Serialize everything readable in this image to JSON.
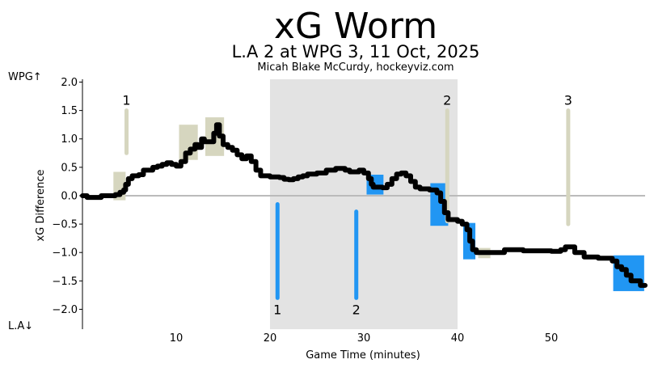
{
  "chart_data": {
    "type": "line",
    "title": "xG Worm",
    "subtitle": "L.A 2 at WPG 3, 11 Oct, 2025",
    "credit": "Micah Blake McCurdy, hockeyviz.com",
    "xlabel": "Game Time (minutes)",
    "ylabel": "xG Difference",
    "top_team_label": "WPG↑",
    "bottom_team_label": "L.A↓",
    "xlim": [
      0,
      60
    ],
    "ylim": [
      -2.35,
      2.05
    ],
    "x_ticks": [
      10,
      20,
      30,
      40,
      50
    ],
    "y_ticks": [
      2.0,
      1.5,
      1.0,
      0.5,
      0.0,
      -0.5,
      -1.0,
      -1.5,
      -2.0
    ],
    "x_tick_labels": [
      "10",
      "20",
      "30",
      "40",
      "50"
    ],
    "y_tick_labels": [
      "2.0",
      "1.5",
      "1.0",
      "0.5",
      "0.0",
      "−0.5",
      "−1.0",
      "−1.5",
      "−2.0"
    ],
    "shaded_period": [
      20,
      40
    ],
    "colors": {
      "worm": "#000000",
      "top_team": "#d6d6bf",
      "bottom_team": "#2196f3",
      "period_shade": "#e3e3e3",
      "zero_line": "#bbbbbb"
    },
    "worm": [
      [
        0,
        0.0
      ],
      [
        0.5,
        -0.03
      ],
      [
        1.5,
        -0.03
      ],
      [
        2,
        0.0
      ],
      [
        3,
        0.0
      ],
      [
        3.5,
        0.02
      ],
      [
        4,
        0.06
      ],
      [
        4.4,
        0.1
      ],
      [
        4.6,
        0.2
      ],
      [
        4.9,
        0.3
      ],
      [
        5.3,
        0.35
      ],
      [
        6,
        0.37
      ],
      [
        6.5,
        0.45
      ],
      [
        7.5,
        0.5
      ],
      [
        8,
        0.52
      ],
      [
        8.5,
        0.55
      ],
      [
        9,
        0.58
      ],
      [
        9.5,
        0.55
      ],
      [
        10,
        0.52
      ],
      [
        10.5,
        0.6
      ],
      [
        11,
        0.75
      ],
      [
        11.5,
        0.82
      ],
      [
        12,
        0.9
      ],
      [
        12.3,
        0.85
      ],
      [
        12.7,
        1.0
      ],
      [
        13,
        0.95
      ],
      [
        13.7,
        0.95
      ],
      [
        14,
        1.1
      ],
      [
        14.3,
        1.25
      ],
      [
        14.6,
        1.05
      ],
      [
        15,
        0.9
      ],
      [
        15.5,
        0.85
      ],
      [
        16,
        0.8
      ],
      [
        16.5,
        0.72
      ],
      [
        17,
        0.65
      ],
      [
        17.5,
        0.7
      ],
      [
        18,
        0.6
      ],
      [
        18.5,
        0.45
      ],
      [
        19,
        0.35
      ],
      [
        20,
        0.33
      ],
      [
        21,
        0.32
      ],
      [
        21.5,
        0.29
      ],
      [
        22,
        0.28
      ],
      [
        22.5,
        0.3
      ],
      [
        23,
        0.33
      ],
      [
        23.5,
        0.35
      ],
      [
        24,
        0.38
      ],
      [
        25,
        0.4
      ],
      [
        26,
        0.45
      ],
      [
        27,
        0.48
      ],
      [
        28,
        0.45
      ],
      [
        28.5,
        0.42
      ],
      [
        29.5,
        0.45
      ],
      [
        30,
        0.4
      ],
      [
        30.5,
        0.3
      ],
      [
        30.8,
        0.2
      ],
      [
        31,
        0.15
      ],
      [
        32,
        0.14
      ],
      [
        32.5,
        0.2
      ],
      [
        33,
        0.3
      ],
      [
        33.5,
        0.38
      ],
      [
        34,
        0.4
      ],
      [
        34.5,
        0.35
      ],
      [
        35,
        0.25
      ],
      [
        35.5,
        0.15
      ],
      [
        36,
        0.12
      ],
      [
        37,
        0.1
      ],
      [
        37.8,
        0.05
      ],
      [
        38.2,
        -0.1
      ],
      [
        38.6,
        -0.3
      ],
      [
        39,
        -0.42
      ],
      [
        40,
        -0.45
      ],
      [
        40.5,
        -0.5
      ],
      [
        41,
        -0.6
      ],
      [
        41.3,
        -0.8
      ],
      [
        41.6,
        -0.95
      ],
      [
        42,
        -1.0
      ],
      [
        43,
        -1.0
      ],
      [
        44,
        -1.0
      ],
      [
        45,
        -0.95
      ],
      [
        46,
        -0.95
      ],
      [
        47,
        -0.97
      ],
      [
        48,
        -0.97
      ],
      [
        49,
        -0.97
      ],
      [
        50,
        -0.98
      ],
      [
        51,
        -0.95
      ],
      [
        51.5,
        -0.9
      ],
      [
        52,
        -0.9
      ],
      [
        52.5,
        -1.0
      ],
      [
        53.5,
        -1.08
      ],
      [
        55,
        -1.1
      ],
      [
        56,
        -1.1
      ],
      [
        56.5,
        -1.15
      ],
      [
        57,
        -1.25
      ],
      [
        57.5,
        -1.3
      ],
      [
        58,
        -1.4
      ],
      [
        58.5,
        -1.5
      ],
      [
        59.5,
        -1.58
      ],
      [
        60,
        -1.58
      ]
    ],
    "penalty_boxes": [
      {
        "team": "WPG",
        "x0": 3.3,
        "x1": 4.6,
        "y0": -0.08,
        "y1": 0.42
      },
      {
        "team": "WPG",
        "x0": 10.3,
        "x1": 12.3,
        "y0": 0.63,
        "y1": 1.25
      },
      {
        "team": "WPG",
        "x0": 13.1,
        "x1": 15.1,
        "y0": 0.7,
        "y1": 1.38
      },
      {
        "team": "WPG",
        "x0": 42.2,
        "x1": 43.5,
        "y0": -1.1,
        "y1": -0.92
      },
      {
        "team": "L.A",
        "x0": 30.3,
        "x1": 32.1,
        "y0": 0.02,
        "y1": 0.37
      },
      {
        "team": "L.A",
        "x0": 37.1,
        "x1": 39.0,
        "y0": -0.53,
        "y1": 0.22
      },
      {
        "team": "L.A",
        "x0": 40.6,
        "x1": 41.9,
        "y0": -1.12,
        "y1": -0.48
      },
      {
        "team": "L.A",
        "x0": 56.6,
        "x1": 59.9,
        "y0": -1.68,
        "y1": -1.05
      }
    ],
    "goals": [
      {
        "team": "WPG",
        "label": "1",
        "x": 4.7,
        "y_top": 1.5,
        "y_bottom": 0.75
      },
      {
        "team": "WPG",
        "label": "2",
        "x": 38.9,
        "y_top": 1.5,
        "y_bottom": -0.45
      },
      {
        "team": "WPG",
        "label": "3",
        "x": 51.8,
        "y_top": 1.5,
        "y_bottom": -0.5
      },
      {
        "team": "L.A",
        "label": "1",
        "x": 20.8,
        "y_top": -0.15,
        "y_bottom": -1.8
      },
      {
        "team": "L.A",
        "label": "2",
        "x": 29.2,
        "y_top": -0.28,
        "y_bottom": -1.8
      }
    ]
  }
}
